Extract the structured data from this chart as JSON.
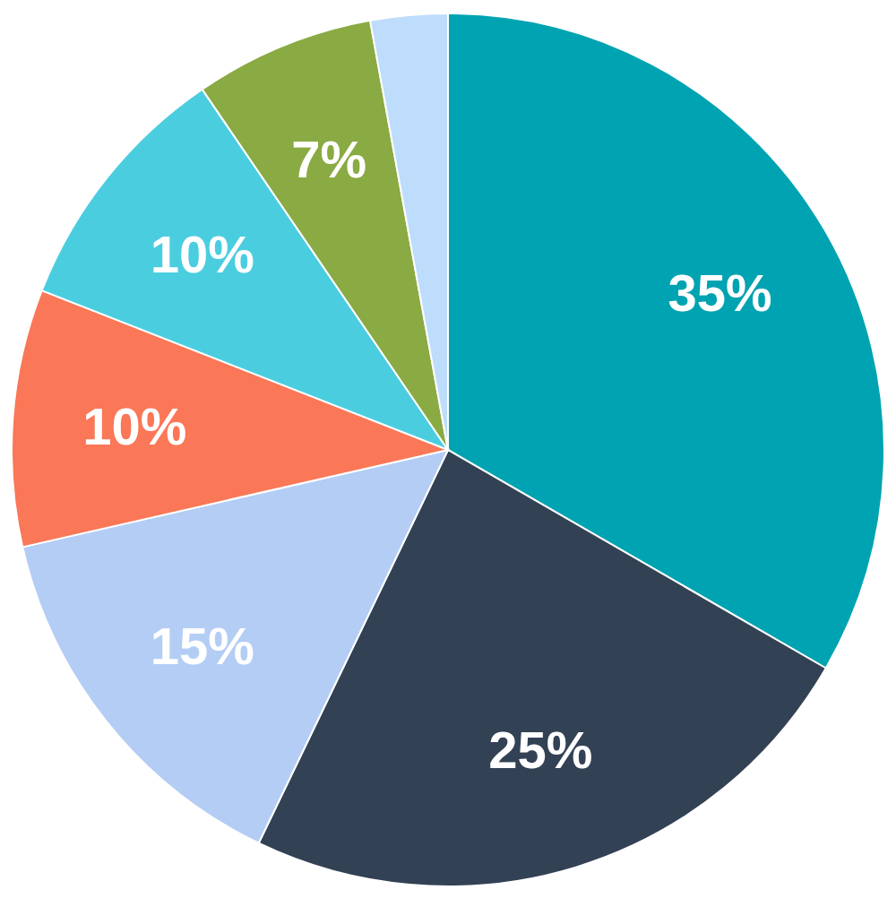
{
  "chart_data": {
    "type": "pie",
    "categories": [
      null,
      null,
      null,
      null,
      null,
      null,
      null
    ],
    "values": [
      35,
      25,
      15,
      10,
      10,
      7,
      3
    ],
    "colors": [
      "#00a3b1",
      "#334155",
      "#b4cdf5",
      "#fa7757",
      "#4bcde0",
      "#8aaa43",
      "#bedcfb"
    ],
    "value_labels": [
      "35%",
      "25%",
      "15%",
      "10%",
      "10%",
      "7%",
      null
    ]
  }
}
